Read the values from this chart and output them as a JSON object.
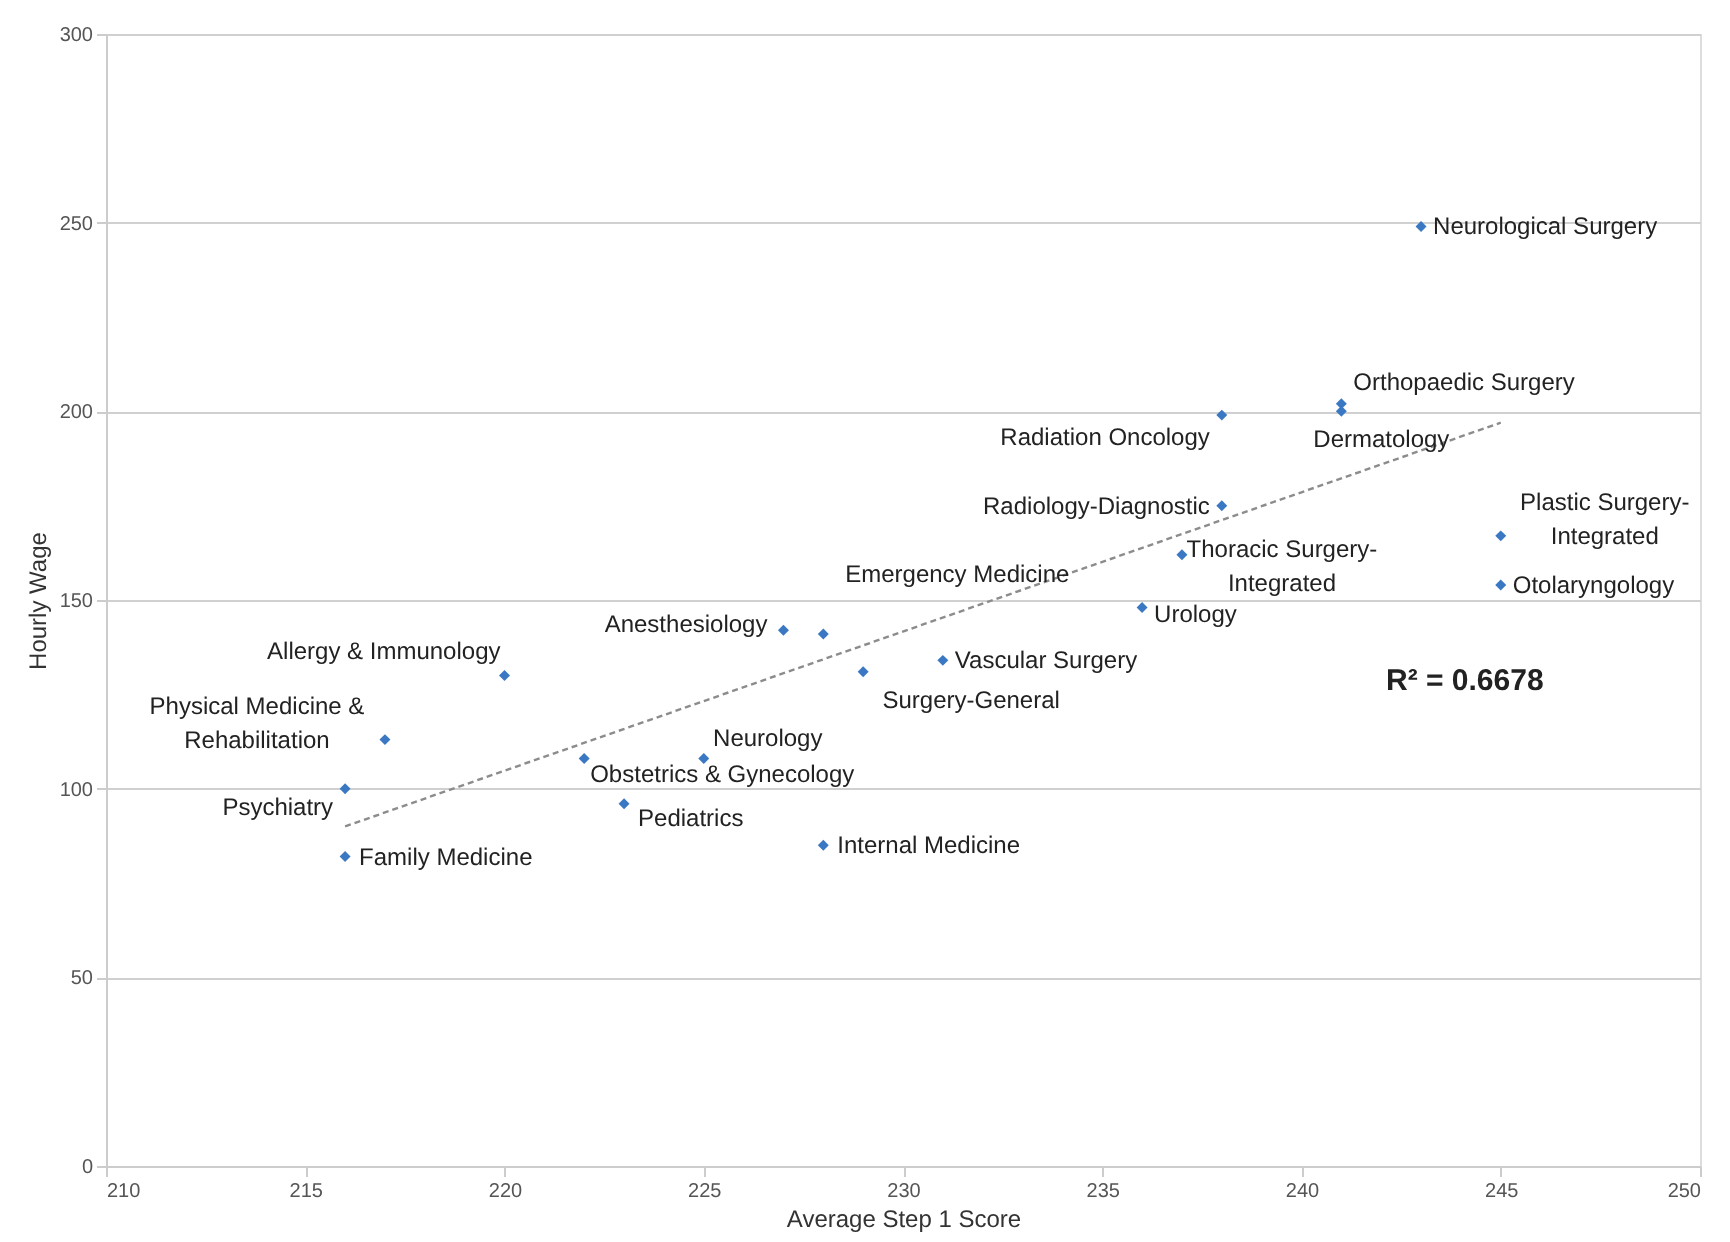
{
  "chart_data": {
    "type": "scatter",
    "xlabel": "Average Step 1 Score",
    "ylabel": "Hourly Wage",
    "xlim": [
      210,
      250
    ],
    "xticks": [
      210,
      215,
      220,
      225,
      230,
      235,
      240,
      245,
      250
    ],
    "ylim": [
      0,
      300
    ],
    "yticks": [
      0,
      50,
      100,
      150,
      200,
      250,
      300
    ],
    "grid": "y",
    "series": [
      {
        "marker": "diamond",
        "color": "#3b78c3",
        "x": [
          243,
          241,
          241,
          238,
          238,
          237,
          245,
          245,
          236,
          228,
          227,
          229,
          231,
          220,
          217,
          216,
          216,
          222,
          225,
          223,
          228
        ],
        "values": [
          249,
          202,
          200,
          199,
          175,
          162,
          167,
          154,
          148,
          141,
          142,
          131,
          134,
          130,
          113,
          100,
          82,
          108,
          108,
          96,
          85
        ]
      },
      {
        "type": "line",
        "marker": "none",
        "line_style": "dashed",
        "color": "#8c8c8c",
        "x": [
          216,
          245
        ],
        "values": [
          90,
          197
        ]
      }
    ],
    "annotations": [
      {
        "text": "Neurological Surgery",
        "x": 243,
        "y": 249
      },
      {
        "text": "Orthopaedic Surgery",
        "x": 241,
        "y": 202
      },
      {
        "text": "Dermatology",
        "x": 241,
        "y": 200
      },
      {
        "text": "Radiation Oncology",
        "x": 238,
        "y": 199
      },
      {
        "text": "Radiology-Diagnostic",
        "x": 238,
        "y": 175
      },
      {
        "text": "Thoracic Surgery-\nIntegrated",
        "x": 237,
        "y": 162
      },
      {
        "text": "Plastic Surgery-\nIntegrated",
        "x": 245,
        "y": 167
      },
      {
        "text": "Otolaryngology",
        "x": 245,
        "y": 154
      },
      {
        "text": "Urology",
        "x": 236,
        "y": 148
      },
      {
        "text": "Emergency Medicine",
        "x": 228,
        "y": 141
      },
      {
        "text": "Anesthesiology",
        "x": 227,
        "y": 142
      },
      {
        "text": "Surgery-General",
        "x": 229,
        "y": 131
      },
      {
        "text": "Vascular Surgery",
        "x": 231,
        "y": 134
      },
      {
        "text": "Allergy & Immunology",
        "x": 220,
        "y": 130
      },
      {
        "text": "Physical Medicine &\nRehabilitation",
        "x": 217,
        "y": 113
      },
      {
        "text": "Psychiatry",
        "x": 216,
        "y": 100
      },
      {
        "text": "Family Medicine",
        "x": 216,
        "y": 82
      },
      {
        "text": "Obstetrics & Gynecology",
        "x": 222,
        "y": 108
      },
      {
        "text": "Neurology",
        "x": 225,
        "y": 108
      },
      {
        "text": "Pediatrics",
        "x": 223,
        "y": 96
      },
      {
        "text": "Internal Medicine",
        "x": 228,
        "y": 85
      },
      "R² = 0.6678"
    ]
  }
}
